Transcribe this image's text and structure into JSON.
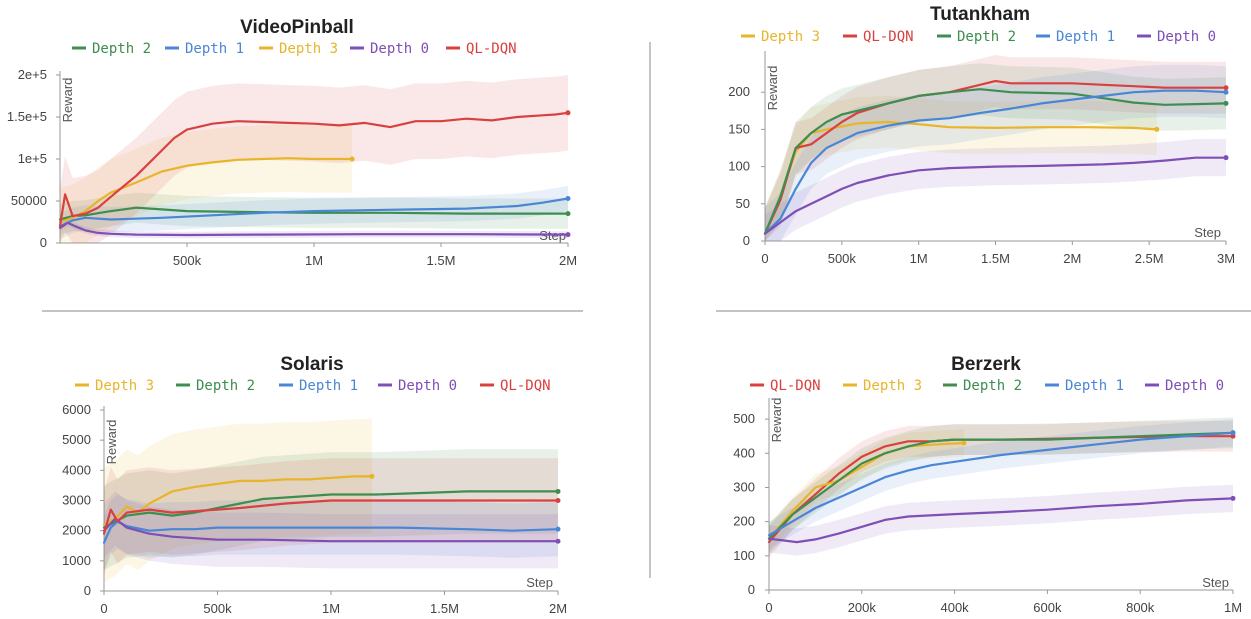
{
  "colors": {
    "QL-DQN": "#d94040",
    "Depth 0": "#7e4fb5",
    "Depth 1": "#4a86d6",
    "Depth 2": "#3d8e4f",
    "Depth 3": "#e8b42a"
  },
  "chart_data": [
    {
      "type": "line",
      "title": "VideoPinball",
      "xlabel": "Step",
      "ylabel": "Reward",
      "xlim": [
        0,
        2000000
      ],
      "ylim": [
        0,
        200000
      ],
      "xticks": [
        {
          "v": 500000,
          "label": "500k"
        },
        {
          "v": 1000000,
          "label": "1M"
        },
        {
          "v": 1500000,
          "label": "1.5M"
        },
        {
          "v": 2000000,
          "label": "2M"
        }
      ],
      "yticks": [
        {
          "v": 0,
          "label": "0"
        },
        {
          "v": 50000,
          "label": "50000"
        },
        {
          "v": 100000,
          "label": "1e+5"
        },
        {
          "v": 150000,
          "label": "1.5e+5"
        },
        {
          "v": 200000,
          "label": "2e+5"
        }
      ],
      "legend": [
        "Depth 2",
        "Depth 1",
        "Depth 3",
        "Depth 0",
        "QL-DQN"
      ],
      "series": [
        {
          "name": "Depth 2",
          "band": 18000,
          "x": [
            0,
            50000,
            100000,
            200000,
            300000,
            400000,
            500000,
            700000,
            1000000,
            1300000,
            1600000,
            2000000
          ],
          "y": [
            28000,
            32000,
            33000,
            38000,
            42000,
            40000,
            38000,
            37000,
            36000,
            36000,
            35000,
            35000
          ]
        },
        {
          "name": "Depth 1",
          "band": 15000,
          "x": [
            0,
            50000,
            100000,
            200000,
            400000,
            600000,
            800000,
            1000000,
            1200000,
            1400000,
            1600000,
            1800000,
            1900000,
            2000000
          ],
          "y": [
            20000,
            27000,
            30000,
            28000,
            30000,
            33000,
            36000,
            38000,
            39000,
            40000,
            41000,
            44000,
            48000,
            53000
          ]
        },
        {
          "name": "Depth 3",
          "band": 40000,
          "x": [
            0,
            50000,
            100000,
            150000,
            200000,
            300000,
            400000,
            500000,
            600000,
            700000,
            800000,
            900000,
            1000000,
            1150000
          ],
          "y": [
            25000,
            30000,
            38000,
            50000,
            60000,
            72000,
            85000,
            92000,
            96000,
            99000,
            100000,
            101000,
            100000,
            100000
          ]
        },
        {
          "name": "Depth 0",
          "band": 4000,
          "x": [
            0,
            30000,
            60000,
            100000,
            150000,
            200000,
            300000,
            500000,
            800000,
            1200000,
            1600000,
            2000000
          ],
          "y": [
            18000,
            24000,
            20000,
            15000,
            12000,
            11000,
            10000,
            9500,
            10000,
            10500,
            10500,
            10000
          ]
        },
        {
          "name": "QL-DQN",
          "band": 45000,
          "x": [
            0,
            20000,
            50000,
            100000,
            150000,
            200000,
            300000,
            400000,
            450000,
            500000,
            600000,
            700000,
            800000,
            900000,
            1000000,
            1100000,
            1200000,
            1300000,
            1400000,
            1500000,
            1600000,
            1700000,
            1800000,
            1900000,
            1950000,
            2000000
          ],
          "y": [
            20000,
            58000,
            32000,
            35000,
            42000,
            55000,
            80000,
            110000,
            125000,
            135000,
            142000,
            145000,
            144000,
            143000,
            142000,
            140000,
            143000,
            138000,
            145000,
            145000,
            148000,
            146000,
            150000,
            152000,
            153000,
            155000
          ]
        }
      ]
    },
    {
      "type": "line",
      "title": "Tutankham",
      "xlabel": "Step",
      "ylabel": "Reward",
      "xlim": [
        0,
        3000000
      ],
      "ylim": [
        0,
        250
      ],
      "xticks": [
        {
          "v": 0,
          "label": "0"
        },
        {
          "v": 500000,
          "label": "500k"
        },
        {
          "v": 1000000,
          "label": "1M"
        },
        {
          "v": 1500000,
          "label": "1.5M"
        },
        {
          "v": 2000000,
          "label": "2M"
        },
        {
          "v": 2500000,
          "label": "2.5M"
        },
        {
          "v": 3000000,
          "label": "3M"
        }
      ],
      "yticks": [
        {
          "v": 0,
          "label": "0"
        },
        {
          "v": 50,
          "label": "50"
        },
        {
          "v": 100,
          "label": "100"
        },
        {
          "v": 150,
          "label": "150"
        },
        {
          "v": 200,
          "label": "200"
        }
      ],
      "legend": [
        "Depth 3",
        "QL-DQN",
        "Depth 2",
        "Depth 1",
        "Depth 0"
      ],
      "series": [
        {
          "name": "Depth 3",
          "band": 35,
          "x": [
            0,
            100000,
            200000,
            300000,
            400000,
            600000,
            800000,
            1000000,
            1200000,
            1500000,
            1800000,
            2100000,
            2400000,
            2550000
          ],
          "y": [
            10,
            60,
            120,
            145,
            150,
            158,
            160,
            157,
            153,
            152,
            153,
            153,
            152,
            150
          ]
        },
        {
          "name": "QL-DQN",
          "band": 35,
          "x": [
            0,
            100000,
            200000,
            300000,
            400000,
            500000,
            600000,
            800000,
            1000000,
            1200000,
            1400000,
            1500000,
            1600000,
            1800000,
            2000000,
            2200000,
            2400000,
            2600000,
            2800000,
            3000000
          ],
          "y": [
            10,
            55,
            125,
            130,
            145,
            160,
            172,
            185,
            195,
            200,
            210,
            215,
            212,
            212,
            212,
            210,
            208,
            206,
            206,
            206
          ]
        },
        {
          "name": "Depth 2",
          "band": 35,
          "x": [
            0,
            100000,
            200000,
            300000,
            400000,
            500000,
            600000,
            800000,
            1000000,
            1200000,
            1400000,
            1600000,
            1800000,
            2000000,
            2200000,
            2400000,
            2600000,
            2800000,
            3000000
          ],
          "y": [
            10,
            60,
            125,
            145,
            160,
            170,
            175,
            185,
            195,
            200,
            204,
            200,
            199,
            198,
            192,
            186,
            183,
            184,
            185
          ]
        },
        {
          "name": "Depth 1",
          "band": 35,
          "x": [
            0,
            100000,
            200000,
            300000,
            400000,
            500000,
            600000,
            800000,
            1000000,
            1200000,
            1400000,
            1600000,
            1800000,
            2000000,
            2200000,
            2400000,
            2600000,
            2800000,
            3000000
          ],
          "y": [
            10,
            30,
            70,
            105,
            125,
            135,
            145,
            155,
            162,
            165,
            172,
            178,
            185,
            190,
            195,
            200,
            202,
            202,
            200
          ]
        },
        {
          "name": "Depth 0",
          "band": 25,
          "x": [
            0,
            100000,
            200000,
            300000,
            400000,
            500000,
            600000,
            800000,
            1000000,
            1200000,
            1500000,
            1800000,
            2000000,
            2200000,
            2400000,
            2600000,
            2800000,
            3000000
          ],
          "y": [
            10,
            25,
            40,
            50,
            60,
            70,
            78,
            88,
            95,
            98,
            100,
            101,
            102,
            103,
            105,
            108,
            112,
            112
          ]
        }
      ]
    },
    {
      "type": "line",
      "title": "Solaris",
      "xlabel": "Step",
      "ylabel": "Reward",
      "xlim": [
        0,
        2000000
      ],
      "ylim": [
        0,
        6000
      ],
      "xticks": [
        {
          "v": 0,
          "label": "0"
        },
        {
          "v": 500000,
          "label": "500k"
        },
        {
          "v": 1000000,
          "label": "1M"
        },
        {
          "v": 1500000,
          "label": "1.5M"
        },
        {
          "v": 2000000,
          "label": "2M"
        }
      ],
      "yticks": [
        {
          "v": 0,
          "label": "0"
        },
        {
          "v": 1000,
          "label": "1000"
        },
        {
          "v": 2000,
          "label": "2000"
        },
        {
          "v": 3000,
          "label": "3000"
        },
        {
          "v": 4000,
          "label": "4000"
        },
        {
          "v": 5000,
          "label": "5000"
        },
        {
          "v": 6000,
          "label": "6000"
        }
      ],
      "legend": [
        "Depth 3",
        "Depth 2",
        "Depth 1",
        "Depth 0",
        "QL-DQN"
      ],
      "series": [
        {
          "name": "Depth 3",
          "band": 1900,
          "x": [
            0,
            50000,
            100000,
            150000,
            200000,
            250000,
            300000,
            400000,
            500000,
            600000,
            700000,
            800000,
            900000,
            1000000,
            1100000,
            1180000
          ],
          "y": [
            2200,
            2400,
            2800,
            2600,
            2900,
            3100,
            3300,
            3450,
            3550,
            3650,
            3650,
            3700,
            3700,
            3750,
            3800,
            3800
          ]
        },
        {
          "name": "Depth 2",
          "band": 1400,
          "x": [
            0,
            50000,
            100000,
            200000,
            300000,
            400000,
            500000,
            600000,
            700000,
            800000,
            900000,
            1000000,
            1200000,
            1400000,
            1600000,
            1800000,
            2000000
          ],
          "y": [
            2100,
            2300,
            2500,
            2600,
            2500,
            2600,
            2750,
            2900,
            3050,
            3100,
            3150,
            3200,
            3200,
            3250,
            3300,
            3300,
            3300
          ]
        },
        {
          "name": "Depth 1",
          "band": 900,
          "x": [
            0,
            30000,
            60000,
            100000,
            200000,
            300000,
            400000,
            500000,
            700000,
            1000000,
            1300000,
            1600000,
            1800000,
            2000000
          ],
          "y": [
            1600,
            2100,
            2300,
            2150,
            2000,
            2050,
            2050,
            2100,
            2100,
            2100,
            2100,
            2050,
            2000,
            2050
          ]
        },
        {
          "name": "Depth 0",
          "band": 900,
          "x": [
            0,
            50000,
            100000,
            200000,
            300000,
            400000,
            500000,
            700000,
            1000000,
            1300000,
            1600000,
            2000000
          ],
          "y": [
            2000,
            2400,
            2100,
            1900,
            1800,
            1750,
            1700,
            1700,
            1650,
            1650,
            1650,
            1650
          ]
        },
        {
          "name": "QL-DQN",
          "band": 1400,
          "x": [
            0,
            30000,
            60000,
            100000,
            200000,
            300000,
            400000,
            500000,
            600000,
            800000,
            1000000,
            1200000,
            1400000,
            1600000,
            1800000,
            2000000
          ],
          "y": [
            1900,
            2700,
            2300,
            2600,
            2700,
            2600,
            2650,
            2700,
            2750,
            2900,
            3000,
            3000,
            3000,
            3000,
            3000,
            3000
          ]
        }
      ]
    },
    {
      "type": "line",
      "title": "Berzerk",
      "xlabel": "Step",
      "ylabel": "Reward",
      "xlim": [
        0,
        1000000
      ],
      "ylim": [
        0,
        550
      ],
      "xticks": [
        {
          "v": 0,
          "label": "0"
        },
        {
          "v": 200000,
          "label": "200k"
        },
        {
          "v": 400000,
          "label": "400k"
        },
        {
          "v": 600000,
          "label": "600k"
        },
        {
          "v": 800000,
          "label": "800k"
        },
        {
          "v": 1000000,
          "label": "1M"
        }
      ],
      "yticks": [
        {
          "v": 0,
          "label": "0"
        },
        {
          "v": 100,
          "label": "100"
        },
        {
          "v": 200,
          "label": "200"
        },
        {
          "v": 300,
          "label": "300"
        },
        {
          "v": 400,
          "label": "400"
        },
        {
          "v": 500,
          "label": "500"
        }
      ],
      "legend": [
        "QL-DQN",
        "Depth 3",
        "Depth 2",
        "Depth 1",
        "Depth 0"
      ],
      "series": [
        {
          "name": "QL-DQN",
          "band": 45,
          "x": [
            0,
            50000,
            100000,
            150000,
            200000,
            250000,
            300000,
            350000,
            400000,
            500000,
            600000,
            700000,
            800000,
            900000,
            1000000
          ],
          "y": [
            140,
            220,
            280,
            340,
            390,
            420,
            435,
            435,
            440,
            440,
            442,
            445,
            448,
            450,
            450
          ]
        },
        {
          "name": "Depth 3",
          "band": 40,
          "x": [
            0,
            50000,
            100000,
            150000,
            200000,
            250000,
            300000,
            350000,
            420000
          ],
          "y": [
            150,
            230,
            300,
            320,
            360,
            400,
            420,
            425,
            430
          ]
        },
        {
          "name": "Depth 2",
          "band": 45,
          "x": [
            0,
            50000,
            100000,
            150000,
            200000,
            250000,
            300000,
            350000,
            400000,
            500000,
            600000,
            700000,
            800000,
            900000,
            1000000
          ],
          "y": [
            150,
            220,
            270,
            320,
            370,
            400,
            420,
            435,
            440,
            440,
            440,
            445,
            450,
            455,
            460
          ]
        },
        {
          "name": "Depth 1",
          "band": 40,
          "x": [
            0,
            50000,
            100000,
            150000,
            200000,
            250000,
            300000,
            350000,
            400000,
            500000,
            600000,
            700000,
            800000,
            900000,
            1000000
          ],
          "y": [
            160,
            200,
            240,
            270,
            300,
            330,
            350,
            365,
            375,
            395,
            410,
            425,
            440,
            450,
            460
          ]
        },
        {
          "name": "Depth 0",
          "band": 40,
          "x": [
            0,
            30000,
            60000,
            100000,
            150000,
            200000,
            250000,
            300000,
            400000,
            500000,
            600000,
            700000,
            800000,
            900000,
            1000000
          ],
          "y": [
            150,
            145,
            140,
            148,
            165,
            185,
            205,
            215,
            222,
            228,
            235,
            245,
            252,
            262,
            268
          ]
        }
      ]
    }
  ]
}
